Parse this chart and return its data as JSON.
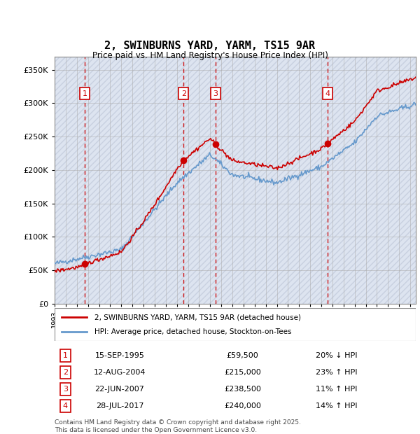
{
  "title_line1": "2, SWINBURNS YARD, YARM, TS15 9AR",
  "title_line2": "Price paid vs. HM Land Registry's House Price Index (HPI)",
  "ylabel": "",
  "xlabel": "",
  "ylim": [
    0,
    370000
  ],
  "yticks": [
    0,
    50000,
    100000,
    150000,
    200000,
    250000,
    300000,
    350000
  ],
  "ytick_labels": [
    "£0",
    "£50K",
    "£100K",
    "£150K",
    "£200K",
    "£250K",
    "£300K",
    "£350K"
  ],
  "sale_dates_num": [
    1995.71,
    2004.61,
    2007.47,
    2017.57
  ],
  "sale_prices": [
    59500,
    215000,
    238500,
    240000
  ],
  "sale_labels": [
    "1",
    "2",
    "3",
    "4"
  ],
  "sale_date_strs": [
    "15-SEP-1995",
    "12-AUG-2004",
    "22-JUN-2007",
    "28-JUL-2017"
  ],
  "sale_price_strs": [
    "£59,500",
    "£215,000",
    "£238,500",
    "£240,000"
  ],
  "sale_hpi_strs": [
    "20% ↓ HPI",
    "23% ↑ HPI",
    "11% ↑ HPI",
    "14% ↑ HPI"
  ],
  "legend_line1": "2, SWINBURNS YARD, YARM, TS15 9AR (detached house)",
  "legend_line2": "HPI: Average price, detached house, Stockton-on-Tees",
  "footer": "Contains HM Land Registry data © Crown copyright and database right 2025.\nThis data is licensed under the Open Government Licence v3.0.",
  "property_color": "#cc0000",
  "hpi_color": "#6699cc",
  "bg_hatch_color": "#d0d8e8",
  "grid_color": "#cccccc",
  "vline_color": "#cc0000"
}
